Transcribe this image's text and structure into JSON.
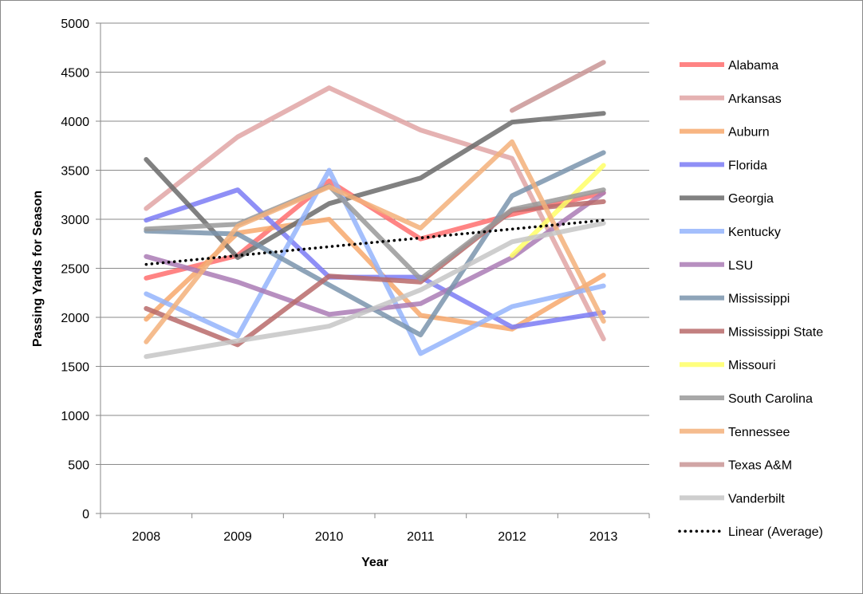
{
  "chart_data": {
    "type": "line",
    "title": "",
    "xlabel": "Year",
    "ylabel": "Passing Yards for Season",
    "categories": [
      "2008",
      "2009",
      "2010",
      "2011",
      "2012",
      "2013"
    ],
    "ylim": [
      0,
      5000
    ],
    "yticks": [
      0,
      500,
      1000,
      1500,
      2000,
      2500,
      3000,
      3500,
      4000,
      4500,
      5000
    ],
    "grid": "horizontal",
    "legend": "right",
    "series": [
      {
        "name": "Alabama",
        "color": "#ff6e6e",
        "values": [
          2400,
          2630,
          3390,
          2800,
          3050,
          3270
        ]
      },
      {
        "name": "Arkansas",
        "color": "#e0a4a4",
        "values": [
          3110,
          3840,
          4340,
          3910,
          3620,
          1780
        ]
      },
      {
        "name": "Auburn",
        "color": "#f7a86c",
        "values": [
          1980,
          2860,
          3000,
          2020,
          1880,
          2430
        ]
      },
      {
        "name": "Florida",
        "color": "#7b7bf5",
        "values": [
          2990,
          3300,
          2410,
          2410,
          1900,
          2050
        ]
      },
      {
        "name": "Georgia",
        "color": "#6b6b6b",
        "values": [
          3610,
          2610,
          3160,
          3420,
          3990,
          4080
        ]
      },
      {
        "name": "Kentucky",
        "color": "#94b4fb",
        "values": [
          2240,
          1810,
          3500,
          1630,
          2110,
          2320
        ]
      },
      {
        "name": "LSU",
        "color": "#aa7bb5",
        "values": [
          2620,
          2360,
          2030,
          2140,
          2610,
          3270
        ]
      },
      {
        "name": "Mississippi",
        "color": "#7a94ad",
        "values": [
          2880,
          2850,
          2330,
          1820,
          3240,
          3680
        ]
      },
      {
        "name": "Mississippi State",
        "color": "#b86a6a",
        "values": [
          2090,
          1720,
          2420,
          2360,
          3090,
          3180
        ]
      },
      {
        "name": "Missouri",
        "color": "#ffff66",
        "values": [
          null,
          null,
          null,
          null,
          2630,
          3550
        ]
      },
      {
        "name": "South Carolina",
        "color": "#999999",
        "values": [
          2900,
          2950,
          3340,
          2390,
          3100,
          3300
        ]
      },
      {
        "name": "Tennessee",
        "color": "#f3b07a",
        "values": [
          1750,
          2930,
          3330,
          2910,
          3790,
          1960
        ]
      },
      {
        "name": "Texas A&M",
        "color": "#c99595",
        "values": [
          null,
          null,
          null,
          null,
          4110,
          4600
        ]
      },
      {
        "name": "Vanderbilt",
        "color": "#c6c6c6",
        "values": [
          1600,
          1760,
          1910,
          2280,
          2770,
          2960
        ]
      },
      {
        "name": "Linear (Average)",
        "color": "#000000",
        "dotted": true,
        "values": [
          2540,
          2630,
          2720,
          2810,
          2900,
          2990
        ]
      }
    ]
  }
}
